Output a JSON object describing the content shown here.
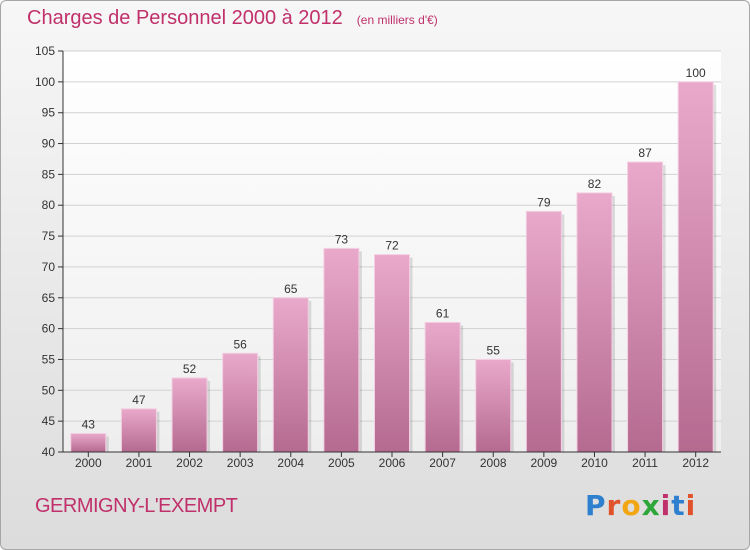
{
  "chart_data": {
    "type": "bar",
    "title": "Charges de Personnel 2000 à 2012",
    "subtitle": "(en milliers d'€)",
    "categories": [
      "2000",
      "2001",
      "2002",
      "2003",
      "2004",
      "2005",
      "2006",
      "2007",
      "2008",
      "2009",
      "2010",
      "2011",
      "2012"
    ],
    "values": [
      43,
      47,
      52,
      56,
      65,
      73,
      72,
      61,
      55,
      79,
      82,
      87,
      100
    ],
    "ylim": [
      40,
      105
    ],
    "yticks": [
      40,
      45,
      50,
      55,
      60,
      65,
      70,
      75,
      80,
      85,
      90,
      95,
      100,
      105
    ],
    "grid": true,
    "bar_color": "#d07aa6",
    "xlabel": "",
    "ylabel": ""
  },
  "footer": {
    "commune": "GERMIGNY-L'EXEMPT",
    "logo_text": "Proxiti"
  },
  "colors": {
    "title": "#c0306a",
    "bar_light": "#e7a6c8",
    "bar_dark": "#b8698f"
  }
}
